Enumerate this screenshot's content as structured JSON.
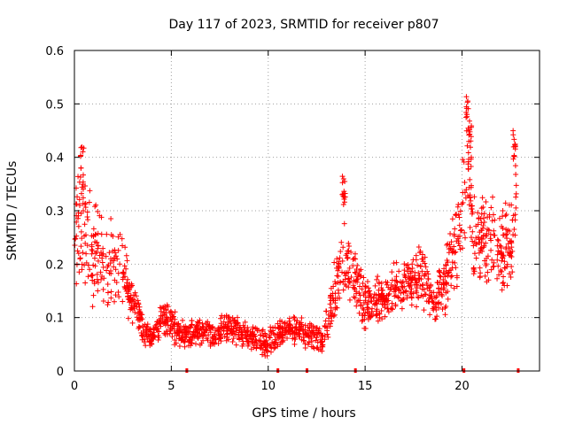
{
  "chart_data": {
    "type": "scatter",
    "title": "Day 117 of 2023, SRMTID for receiver p807",
    "xlabel": "GPS time / hours",
    "ylabel": "SRMTID / TECUs",
    "xlim": [
      0,
      24
    ],
    "ylim": [
      0,
      0.6
    ],
    "xticks": [
      "0",
      "5",
      "10",
      "15",
      "20"
    ],
    "yticks": [
      "0",
      "0.1",
      "0.2",
      "0.3",
      "0.4",
      "0.5",
      "0.6"
    ],
    "grid": true,
    "marker": "plus",
    "color": "#ff0000",
    "zero_markers_x": [
      5.8,
      10.5,
      12.0,
      14.5,
      20.1,
      22.9
    ],
    "series": [
      {
        "name": "SRMTID",
        "profile": {
          "x": [
            0,
            0.3,
            0.6,
            1.0,
            1.5,
            2.0,
            2.5,
            3.0,
            3.5,
            4.0,
            4.5,
            5.0,
            5.5,
            6.0,
            7.0,
            8.0,
            9.0,
            9.5,
            10.0,
            10.5,
            11.0,
            12.0,
            12.8,
            13.3,
            13.7,
            14.0,
            14.5,
            15.0,
            16.0,
            17.0,
            17.5,
            18.0,
            18.5,
            19.0,
            19.5,
            20.0,
            20.3,
            20.6,
            21.0,
            21.5,
            22.0,
            22.5,
            22.8
          ],
          "mean": [
            0.28,
            0.26,
            0.24,
            0.22,
            0.21,
            0.2,
            0.19,
            0.13,
            0.08,
            0.06,
            0.1,
            0.09,
            0.07,
            0.07,
            0.07,
            0.08,
            0.07,
            0.06,
            0.05,
            0.07,
            0.08,
            0.07,
            0.06,
            0.13,
            0.21,
            0.22,
            0.17,
            0.12,
            0.14,
            0.16,
            0.17,
            0.18,
            0.13,
            0.15,
            0.22,
            0.3,
            0.36,
            0.25,
            0.24,
            0.25,
            0.22,
            0.24,
            0.3
          ],
          "spread": [
            0.13,
            0.13,
            0.12,
            0.11,
            0.1,
            0.09,
            0.07,
            0.05,
            0.03,
            0.02,
            0.04,
            0.04,
            0.03,
            0.03,
            0.03,
            0.03,
            0.03,
            0.03,
            0.03,
            0.03,
            0.03,
            0.03,
            0.03,
            0.06,
            0.09,
            0.08,
            0.07,
            0.05,
            0.05,
            0.06,
            0.06,
            0.07,
            0.05,
            0.06,
            0.09,
            0.12,
            0.14,
            0.1,
            0.09,
            0.09,
            0.09,
            0.1,
            0.1
          ]
        },
        "peaks": [
          {
            "x": 0.4,
            "y": 0.42
          },
          {
            "x": 13.9,
            "y": 0.37
          },
          {
            "x": 20.3,
            "y": 0.52
          },
          {
            "x": 20.4,
            "y": 0.46
          },
          {
            "x": 22.7,
            "y": 0.47
          }
        ]
      }
    ]
  }
}
